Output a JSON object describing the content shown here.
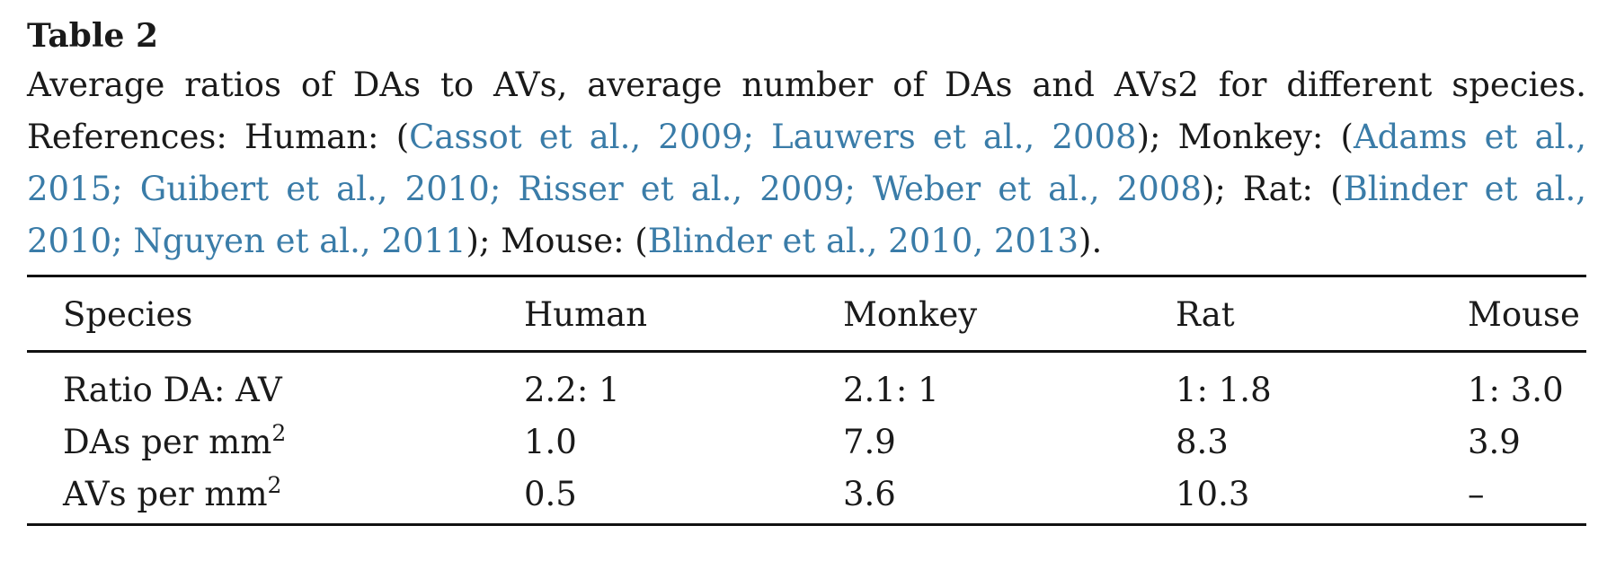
{
  "table": {
    "label": "Table 2",
    "caption_parts": [
      {
        "text": "Average ratios of DAs to AVs, average number of DAs and AVs2 for different species. References: Human: (",
        "ref": false
      },
      {
        "text": "Cassot et al., 2009; Lauwers et al., 2008",
        "ref": true
      },
      {
        "text": "); Monkey: (",
        "ref": false
      },
      {
        "text": "Adams et al., 2015; Guibert et al., 2010; Risser et al., 2009; Weber et al., 2008",
        "ref": true
      },
      {
        "text": "); Rat: (",
        "ref": false
      },
      {
        "text": "Blinder et al., 2010; Nguyen et al., 2011",
        "ref": true
      },
      {
        "text": "); Mouse: (",
        "ref": false
      },
      {
        "text": "Blinder et al., 2010, 2013",
        "ref": true
      },
      {
        "text": ").",
        "ref": false
      }
    ],
    "headers": [
      "Species",
      "Human",
      "Monkey",
      "Rat",
      "Mouse"
    ],
    "rows": [
      {
        "label": "Ratio DA: AV",
        "sup": "",
        "values": [
          "2.2: 1",
          "2.1: 1",
          "1: 1.8",
          "1: 3.0"
        ]
      },
      {
        "label": "DAs per mm",
        "sup": "2",
        "values": [
          "1.0",
          "7.9",
          "8.3",
          "3.9"
        ]
      },
      {
        "label": "AVs per mm",
        "sup": "2",
        "values": [
          "0.5",
          "3.6",
          "10.3",
          "–"
        ]
      }
    ]
  }
}
